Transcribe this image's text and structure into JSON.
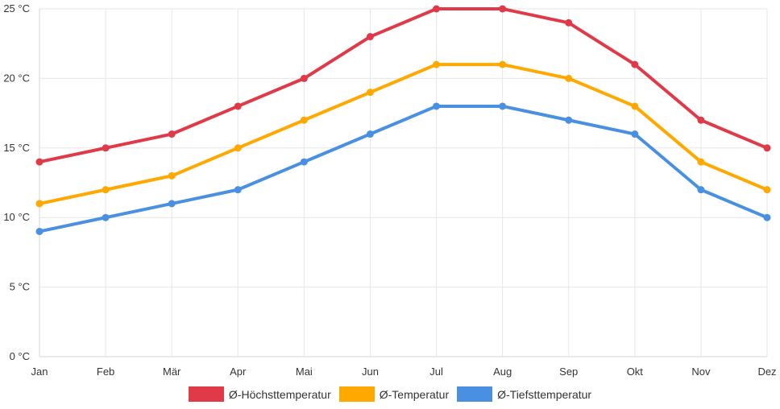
{
  "chart_data": {
    "type": "line",
    "categories": [
      "Jan",
      "Feb",
      "Mär",
      "Apr",
      "Mai",
      "Jun",
      "Jul",
      "Aug",
      "Sep",
      "Okt",
      "Nov",
      "Dez"
    ],
    "ylim": [
      0,
      25
    ],
    "yticks": [
      "0 °C",
      "5 °C",
      "10 °C",
      "15 °C",
      "20 °C",
      "25 °C"
    ],
    "grid": true,
    "legend_position": "bottom",
    "series": [
      {
        "name": "Ø-Höchsttemperatur",
        "color": "#e03a48",
        "values": [
          14,
          15,
          16,
          18,
          20,
          23,
          25,
          25,
          24,
          21,
          17,
          15
        ]
      },
      {
        "name": "Ø-Temperatur",
        "color": "#ffa800",
        "values": [
          11,
          12,
          13,
          15,
          17,
          19,
          21,
          21,
          20,
          18,
          14,
          12
        ]
      },
      {
        "name": "Ø-Tiefsttemperatur",
        "color": "#4a90e2",
        "values": [
          9,
          10,
          11,
          12,
          14,
          16,
          18,
          18,
          17,
          16,
          12,
          10
        ]
      }
    ]
  }
}
